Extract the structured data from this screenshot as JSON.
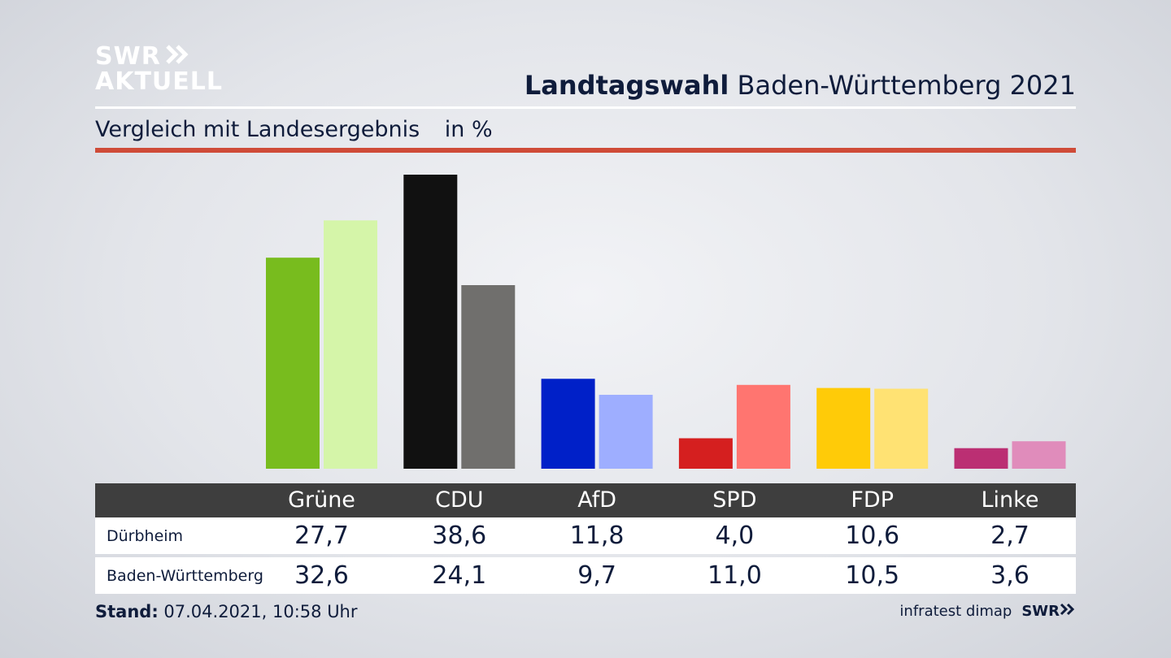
{
  "logo": {
    "line1": "SWR",
    "line2": "AKTUELL"
  },
  "title": {
    "bold": "Landtagswahl",
    "rest": "Baden-Württemberg 2021"
  },
  "subtitle": {
    "text": "Vergleich mit Landesergebnis",
    "unit": "in %"
  },
  "colors": {
    "Grüne": [
      "#78bc1e",
      "#d5f5a9"
    ],
    "CDU": [
      "#111111",
      "#706f6d"
    ],
    "AfD": [
      "#0020c8",
      "#9eaeff"
    ],
    "SPD": [
      "#d51f1f",
      "#ff7570"
    ],
    "FDP": [
      "#ffcb08",
      "#ffe273"
    ],
    "Linke": [
      "#bb2f73",
      "#e08cbb"
    ]
  },
  "chart_data": {
    "type": "bar",
    "categories": [
      "Grüne",
      "CDU",
      "AfD",
      "SPD",
      "FDP",
      "Linke"
    ],
    "series": [
      {
        "name": "Dürbheim",
        "values": [
          27.7,
          38.6,
          11.8,
          4.0,
          10.6,
          2.7
        ]
      },
      {
        "name": "Baden-Württemberg",
        "values": [
          32.6,
          24.1,
          9.7,
          11.0,
          10.5,
          3.6
        ]
      }
    ],
    "ylim": [
      0,
      38.6
    ],
    "grid": false
  },
  "table": {
    "row1": {
      "label": "Dürbheim",
      "values": [
        "27,7",
        "38,6",
        "11,8",
        "4,0",
        "10,6",
        "2,7"
      ]
    },
    "row2": {
      "label": "Baden-Württemberg",
      "values": [
        "32,6",
        "24,1",
        "9,7",
        "11,0",
        "10,5",
        "3,6"
      ]
    }
  },
  "footer": {
    "stand_label": "Stand:",
    "stand_value": "07.04.2021, 10:58 Uhr",
    "source": "infratest dimap",
    "brand": "SWR"
  }
}
